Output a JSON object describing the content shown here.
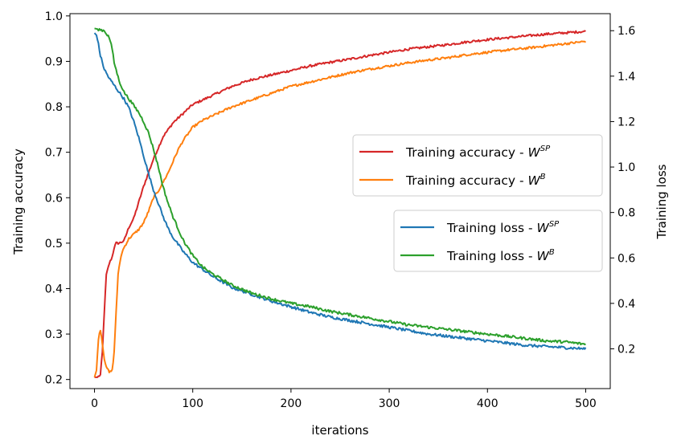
{
  "chart_data": {
    "type": "line",
    "xlabel": "iterations",
    "ylabel_left": "Training accuracy",
    "ylabel_right": "Training loss",
    "xlim": [
      -25,
      525
    ],
    "ylim_left": [
      0.18,
      1.005
    ],
    "ylim_right": [
      0.025,
      1.675
    ],
    "xticks": [
      0,
      100,
      200,
      300,
      400,
      500
    ],
    "yticks_left": [
      0.2,
      0.3,
      0.4,
      0.5,
      0.6,
      0.7,
      0.8,
      0.9,
      1.0
    ],
    "yticks_right": [
      0.2,
      0.4,
      0.6,
      0.8,
      1.0,
      1.2,
      1.4,
      1.6
    ],
    "grid": false,
    "legend_accuracy_placement": "center-right",
    "legend_loss_placement": "right",
    "series": [
      {
        "key": "acc_sp",
        "axis": "left",
        "color": "#d62728",
        "legend": "Training accuracy - ",
        "sup": "SP",
        "x": [
          0,
          3,
          6,
          8,
          10,
          12,
          15,
          18,
          20,
          22,
          25,
          30,
          35,
          40,
          45,
          50,
          55,
          60,
          65,
          70,
          75,
          80,
          90,
          100,
          110,
          120,
          140,
          160,
          180,
          200,
          220,
          240,
          260,
          280,
          300,
          320,
          340,
          360,
          380,
          400,
          420,
          440,
          460,
          480,
          500
        ],
        "y": [
          0.205,
          0.205,
          0.21,
          0.26,
          0.35,
          0.43,
          0.455,
          0.47,
          0.49,
          0.5,
          0.5,
          0.505,
          0.535,
          0.555,
          0.59,
          0.625,
          0.655,
          0.685,
          0.71,
          0.735,
          0.75,
          0.765,
          0.785,
          0.805,
          0.815,
          0.825,
          0.845,
          0.86,
          0.87,
          0.88,
          0.89,
          0.898,
          0.905,
          0.913,
          0.92,
          0.927,
          0.932,
          0.937,
          0.943,
          0.948,
          0.952,
          0.956,
          0.96,
          0.963,
          0.966
        ]
      },
      {
        "key": "acc_b",
        "axis": "left",
        "color": "#ff7f0e",
        "legend": "Training accuracy - ",
        "sup": "B",
        "x": [
          0,
          2,
          4,
          6,
          8,
          10,
          12,
          15,
          18,
          20,
          22,
          24,
          26,
          28,
          30,
          35,
          40,
          45,
          50,
          55,
          60,
          65,
          70,
          75,
          80,
          85,
          90,
          100,
          110,
          120,
          140,
          160,
          180,
          200,
          220,
          240,
          260,
          280,
          300,
          320,
          340,
          360,
          380,
          400,
          420,
          440,
          460,
          480,
          500
        ],
        "y": [
          0.205,
          0.22,
          0.29,
          0.31,
          0.28,
          0.245,
          0.23,
          0.215,
          0.22,
          0.26,
          0.35,
          0.43,
          0.46,
          0.48,
          0.49,
          0.51,
          0.52,
          0.53,
          0.545,
          0.57,
          0.6,
          0.615,
          0.635,
          0.655,
          0.68,
          0.705,
          0.725,
          0.755,
          0.77,
          0.78,
          0.8,
          0.815,
          0.83,
          0.845,
          0.855,
          0.865,
          0.875,
          0.883,
          0.89,
          0.897,
          0.903,
          0.908,
          0.915,
          0.92,
          0.925,
          0.929,
          0.934,
          0.939,
          0.944
        ]
      },
      {
        "key": "loss_sp",
        "axis": "right",
        "color": "#1f77b4",
        "legend": "Training loss - ",
        "sup": "SP",
        "x": [
          0,
          2,
          4,
          6,
          8,
          10,
          15,
          20,
          25,
          30,
          35,
          40,
          45,
          50,
          55,
          60,
          65,
          70,
          75,
          80,
          90,
          100,
          110,
          120,
          140,
          160,
          180,
          200,
          220,
          240,
          260,
          280,
          300,
          320,
          340,
          360,
          380,
          400,
          420,
          440,
          460,
          480,
          500
        ],
        "y": [
          1.59,
          1.58,
          1.54,
          1.49,
          1.46,
          1.43,
          1.39,
          1.36,
          1.33,
          1.3,
          1.26,
          1.2,
          1.13,
          1.05,
          0.97,
          0.9,
          0.84,
          0.78,
          0.73,
          0.69,
          0.63,
          0.58,
          0.55,
          0.52,
          0.47,
          0.44,
          0.41,
          0.385,
          0.36,
          0.34,
          0.325,
          0.31,
          0.295,
          0.28,
          0.265,
          0.255,
          0.245,
          0.235,
          0.225,
          0.215,
          0.21,
          0.205,
          0.2
        ]
      },
      {
        "key": "loss_b",
        "axis": "right",
        "color": "#2ca02c",
        "legend": "Training loss - ",
        "sup": "B",
        "x": [
          0,
          5,
          10,
          15,
          18,
          20,
          25,
          30,
          35,
          40,
          45,
          50,
          55,
          60,
          65,
          70,
          75,
          80,
          90,
          100,
          110,
          120,
          140,
          160,
          180,
          200,
          220,
          240,
          260,
          280,
          300,
          320,
          340,
          360,
          380,
          400,
          420,
          440,
          460,
          480,
          500
        ],
        "y": [
          1.61,
          1.605,
          1.6,
          1.57,
          1.52,
          1.46,
          1.38,
          1.33,
          1.3,
          1.27,
          1.24,
          1.2,
          1.15,
          1.08,
          1.0,
          0.91,
          0.84,
          0.78,
          0.68,
          0.61,
          0.56,
          0.53,
          0.48,
          0.445,
          0.42,
          0.4,
          0.385,
          0.365,
          0.35,
          0.335,
          0.32,
          0.305,
          0.295,
          0.285,
          0.275,
          0.265,
          0.255,
          0.245,
          0.235,
          0.23,
          0.22
        ]
      }
    ]
  }
}
